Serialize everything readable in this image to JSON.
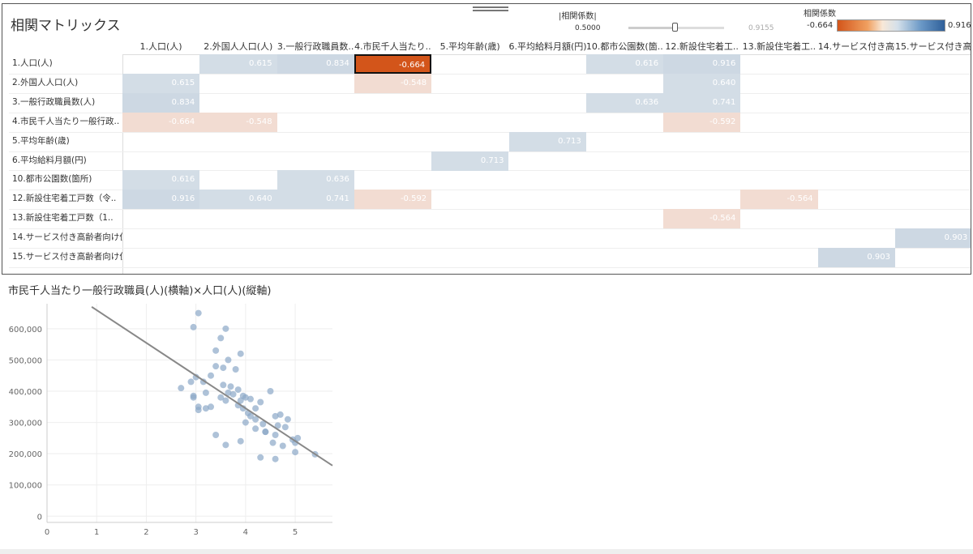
{
  "matrix": {
    "title": "相関マトリックス",
    "filter": {
      "title": "|相関係数|",
      "min_label": "0.5000",
      "max_label": "0.9155",
      "value": 0.5,
      "max_value": 0.9155
    },
    "legend": {
      "title": "相関係数",
      "min_label": "-0.664",
      "max_label": "0.916"
    },
    "columns": [
      "1.人口(人)",
      "2.外国人人口(人)",
      "3.一般行政職員数..",
      "4.市民千人当たり..",
      "5.平均年齢(歳)",
      "6.平均給料月額(円)",
      "10.都市公園数(箇..",
      "12.新設住宅着工..",
      "13.新設住宅着工..",
      "14.サービス付き高齢..",
      "15.サービス付き高齢.."
    ],
    "rows": [
      "1.人口(人)",
      "2.外国人人口(人)",
      "3.一般行政職員数(人)",
      "4.市民千人当たり一般行政..",
      "5.平均年齢(歳)",
      "6.平均給料月額(円)",
      "10.都市公園数(箇所)",
      "12.新設住宅着工戸数（令..",
      "13.新設住宅着工戸数（1..",
      "14.サービス付き高齢者向け住..",
      "15.サービス付き高齢者向け住.."
    ],
    "cells": [
      {
        "r": 0,
        "c": 1,
        "v": "0.615",
        "n": 0.615
      },
      {
        "r": 0,
        "c": 2,
        "v": "0.834",
        "n": 0.834
      },
      {
        "r": 0,
        "c": 3,
        "v": "-0.664",
        "n": -0.664,
        "selected": true
      },
      {
        "r": 0,
        "c": 6,
        "v": "0.616",
        "n": 0.616
      },
      {
        "r": 0,
        "c": 7,
        "v": "0.916",
        "n": 0.916
      },
      {
        "r": 1,
        "c": 0,
        "v": "0.615",
        "n": 0.615
      },
      {
        "r": 1,
        "c": 3,
        "v": "-0.548",
        "n": -0.548
      },
      {
        "r": 1,
        "c": 7,
        "v": "0.640",
        "n": 0.64
      },
      {
        "r": 2,
        "c": 0,
        "v": "0.834",
        "n": 0.834
      },
      {
        "r": 2,
        "c": 6,
        "v": "0.636",
        "n": 0.636
      },
      {
        "r": 2,
        "c": 7,
        "v": "0.741",
        "n": 0.741
      },
      {
        "r": 3,
        "c": 0,
        "v": "-0.664",
        "n": -0.664
      },
      {
        "r": 3,
        "c": 1,
        "v": "-0.548",
        "n": -0.548
      },
      {
        "r": 3,
        "c": 7,
        "v": "-0.592",
        "n": -0.592
      },
      {
        "r": 4,
        "c": 5,
        "v": "0.713",
        "n": 0.713
      },
      {
        "r": 5,
        "c": 4,
        "v": "0.713",
        "n": 0.713
      },
      {
        "r": 6,
        "c": 0,
        "v": "0.616",
        "n": 0.616
      },
      {
        "r": 6,
        "c": 2,
        "v": "0.636",
        "n": 0.636
      },
      {
        "r": 7,
        "c": 0,
        "v": "0.916",
        "n": 0.916
      },
      {
        "r": 7,
        "c": 1,
        "v": "0.640",
        "n": 0.64
      },
      {
        "r": 7,
        "c": 2,
        "v": "0.741",
        "n": 0.741
      },
      {
        "r": 7,
        "c": 3,
        "v": "-0.592",
        "n": -0.592
      },
      {
        "r": 7,
        "c": 8,
        "v": "-0.564",
        "n": -0.564
      },
      {
        "r": 8,
        "c": 7,
        "v": "-0.564",
        "n": -0.564
      },
      {
        "r": 9,
        "c": 10,
        "v": "0.903",
        "n": 0.903
      },
      {
        "r": 10,
        "c": 9,
        "v": "0.903",
        "n": 0.903
      }
    ],
    "colors": {
      "positive": "#d3dde6",
      "positive_strong": "#cdd8e3",
      "negative": "#f2dcd2",
      "selected": "#d3551a"
    }
  },
  "scatter": {
    "title": "市民千人当たり一般行政職員(人)(横軸)×人口(人)(縦軸)"
  },
  "chart_data": {
    "type": "scatter",
    "title": "市民千人当たり一般行政職員(人)(横軸)×人口(人)(縦軸)",
    "xlabel": "",
    "ylabel": "",
    "x_ticks": [
      "0",
      "1",
      "2",
      "3",
      "4",
      "5"
    ],
    "y_ticks": [
      "0",
      "100,000",
      "200,000",
      "300,000",
      "400,000",
      "500,000",
      "600,000"
    ],
    "xlim": [
      0,
      5.75
    ],
    "ylim": [
      -20000,
      680000
    ],
    "grid": true,
    "trend_line": {
      "x": [
        0.9,
        5.75
      ],
      "y": [
        670000,
        162000
      ]
    },
    "point_color": "#8ca8c8",
    "line_color": "#888888",
    "points": [
      [
        3.05,
        650000
      ],
      [
        2.95,
        605000
      ],
      [
        3.6,
        600000
      ],
      [
        3.5,
        570000
      ],
      [
        3.4,
        530000
      ],
      [
        3.9,
        520000
      ],
      [
        3.65,
        500000
      ],
      [
        3.4,
        480000
      ],
      [
        3.55,
        475000
      ],
      [
        3.8,
        470000
      ],
      [
        3.3,
        450000
      ],
      [
        3.0,
        445000
      ],
      [
        3.15,
        430000
      ],
      [
        2.9,
        430000
      ],
      [
        3.55,
        420000
      ],
      [
        3.7,
        415000
      ],
      [
        2.7,
        410000
      ],
      [
        3.85,
        405000
      ],
      [
        3.2,
        395000
      ],
      [
        3.65,
        395000
      ],
      [
        4.5,
        400000
      ],
      [
        3.75,
        390000
      ],
      [
        2.95,
        385000
      ],
      [
        3.95,
        385000
      ],
      [
        3.5,
        380000
      ],
      [
        4.0,
        380000
      ],
      [
        4.1,
        375000
      ],
      [
        3.9,
        370000
      ],
      [
        2.95,
        380000
      ],
      [
        3.6,
        370000
      ],
      [
        4.3,
        365000
      ],
      [
        3.85,
        355000
      ],
      [
        3.05,
        350000
      ],
      [
        3.3,
        350000
      ],
      [
        4.2,
        345000
      ],
      [
        3.05,
        340000
      ],
      [
        3.2,
        345000
      ],
      [
        3.95,
        345000
      ],
      [
        4.05,
        330000
      ],
      [
        4.7,
        325000
      ],
      [
        4.6,
        320000
      ],
      [
        4.85,
        310000
      ],
      [
        4.2,
        310000
      ],
      [
        4.0,
        300000
      ],
      [
        4.35,
        295000
      ],
      [
        4.65,
        290000
      ],
      [
        4.8,
        285000
      ],
      [
        4.2,
        280000
      ],
      [
        4.4,
        270000
      ],
      [
        4.6,
        260000
      ],
      [
        3.4,
        260000
      ],
      [
        5.05,
        250000
      ],
      [
        4.95,
        245000
      ],
      [
        3.9,
        240000
      ],
      [
        4.55,
        235000
      ],
      [
        5.0,
        235000
      ],
      [
        3.6,
        228000
      ],
      [
        4.75,
        225000
      ],
      [
        5.0,
        205000
      ],
      [
        5.4,
        198000
      ],
      [
        4.3,
        188000
      ],
      [
        4.6,
        183000
      ],
      [
        4.4,
        270000
      ],
      [
        4.1,
        320000
      ]
    ]
  }
}
